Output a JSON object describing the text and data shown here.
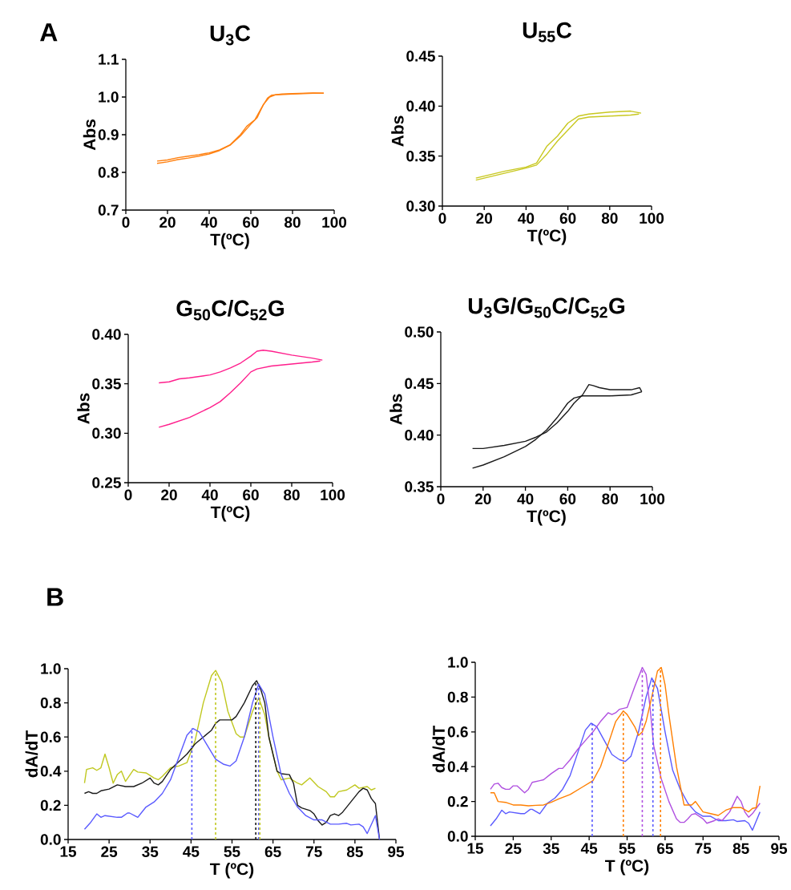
{
  "chart_data": [
    {
      "type": "line",
      "title": "U$_{3}$C",
      "xlabel": "T(ºC)",
      "ylabel": "Abs",
      "annotations": [
        "A"
      ],
      "line_style": "solid",
      "xlim": [
        0,
        100
      ],
      "ylim": [
        0.7,
        1.1
      ],
      "xticks": [
        0,
        20,
        40,
        60,
        80,
        100
      ],
      "yticks": [
        0.7,
        0.8,
        0.9,
        {
          "value": 1.0,
          "label": "1.0"
        },
        1.1
      ],
      "series": [
        {
          "color": "#ff8010",
          "x": [
            15,
            20,
            25,
            30,
            35,
            40,
            45,
            50,
            55,
            58,
            62,
            65,
            68,
            70,
            75,
            80,
            90,
            95
          ],
          "values": [
            0.83,
            0.833,
            0.839,
            0.843,
            0.847,
            0.852,
            0.86,
            0.873,
            0.9,
            0.922,
            0.94,
            0.97,
            0.997,
            1.005,
            1.008,
            1.009,
            1.011,
            1.01
          ]
        },
        {
          "color": "#ff8010",
          "x": [
            15,
            20,
            25,
            30,
            35,
            40,
            45,
            50,
            55,
            60,
            63,
            66,
            69,
            72,
            80,
            90,
            95
          ],
          "values": [
            0.824,
            0.828,
            0.834,
            0.838,
            0.843,
            0.849,
            0.858,
            0.872,
            0.897,
            0.928,
            0.945,
            0.98,
            1.0,
            1.006,
            1.008,
            1.01,
            1.01
          ]
        }
      ]
    },
    {
      "type": "line",
      "title": "U$_{55}$C",
      "xlabel": "T(ºC)",
      "ylabel": "Abs",
      "line_style": "solid",
      "xlim": [
        0,
        100
      ],
      "ylim": [
        0.3,
        0.45
      ],
      "xticks": [
        0,
        20,
        40,
        60,
        80,
        100
      ],
      "yticks": [
        {
          "value": 0.3,
          "label": "0.30"
        },
        0.35,
        {
          "value": 0.4,
          "label": "0.40"
        },
        0.45
      ],
      "series": [
        {
          "color": "#c8c820",
          "x": [
            16,
            30,
            40,
            45,
            50,
            55,
            60,
            65,
            70,
            80,
            90,
            95
          ],
          "values": [
            0.328,
            0.335,
            0.339,
            0.343,
            0.36,
            0.37,
            0.383,
            0.39,
            0.392,
            0.394,
            0.395,
            0.393
          ]
        },
        {
          "color": "#c8c820",
          "x": [
            16,
            30,
            40,
            45,
            50,
            55,
            60,
            65,
            70,
            80,
            90,
            94
          ],
          "values": [
            0.326,
            0.333,
            0.338,
            0.341,
            0.352,
            0.365,
            0.376,
            0.387,
            0.389,
            0.39,
            0.391,
            0.392
          ]
        }
      ]
    },
    {
      "type": "line",
      "title": "G$_{50}$C/C$_{52}$G",
      "xlabel": "T(ºC)",
      "ylabel": "Abs",
      "line_style": "solid",
      "xlim": [
        0,
        100
      ],
      "ylim": [
        0.25,
        0.4
      ],
      "xticks": [
        0,
        20,
        40,
        60,
        80,
        100
      ],
      "yticks": [
        0.25,
        {
          "value": 0.3,
          "label": "0.30"
        },
        0.35,
        {
          "value": 0.4,
          "label": "0.40"
        }
      ],
      "series": [
        {
          "color": "#ff1e8c",
          "x": [
            15,
            20,
            25,
            30,
            40,
            45,
            50,
            55,
            60,
            63,
            66,
            70,
            80,
            90,
            95
          ],
          "values": [
            0.351,
            0.352,
            0.355,
            0.356,
            0.359,
            0.362,
            0.366,
            0.371,
            0.378,
            0.383,
            0.384,
            0.383,
            0.379,
            0.376,
            0.374
          ]
        },
        {
          "color": "#ff1e8c",
          "x": [
            15,
            20,
            30,
            40,
            45,
            50,
            55,
            60,
            63,
            70,
            80,
            90,
            94
          ],
          "values": [
            0.306,
            0.309,
            0.316,
            0.326,
            0.332,
            0.341,
            0.351,
            0.362,
            0.365,
            0.368,
            0.37,
            0.372,
            0.373
          ]
        }
      ]
    },
    {
      "type": "line",
      "title": "U$_{3}$G/G$_{50}$C/C$_{52}$G",
      "xlabel": "T(ºC)",
      "ylabel": "Abs",
      "line_style": "solid",
      "xlim": [
        0,
        100
      ],
      "ylim": [
        0.35,
        0.5
      ],
      "xticks": [
        0,
        20,
        40,
        60,
        80,
        100
      ],
      "yticks": [
        0.35,
        {
          "value": 0.4,
          "label": "0.40"
        },
        0.45,
        {
          "value": 0.5,
          "label": "0.50"
        }
      ],
      "series": [
        {
          "color": "#1a1a1a",
          "x": [
            15,
            20,
            30,
            40,
            45,
            50,
            55,
            60,
            63,
            67,
            70,
            72,
            75,
            80,
            90,
            94,
            95
          ],
          "values": [
            0.387,
            0.387,
            0.39,
            0.394,
            0.398,
            0.403,
            0.412,
            0.423,
            0.431,
            0.439,
            0.449,
            0.448,
            0.446,
            0.444,
            0.444,
            0.446,
            0.442
          ]
        },
        {
          "color": "#1a1a1a",
          "x": [
            15,
            20,
            30,
            40,
            45,
            50,
            55,
            60,
            63,
            67,
            70,
            80,
            90,
            95
          ],
          "values": [
            0.368,
            0.371,
            0.379,
            0.389,
            0.396,
            0.405,
            0.417,
            0.431,
            0.436,
            0.438,
            0.438,
            0.438,
            0.439,
            0.442
          ]
        }
      ]
    },
    {
      "type": "line",
      "xlabel": "T (ºC)",
      "ylabel": "dA/dT",
      "annotations": [
        "B"
      ],
      "line_style": "solid",
      "xlim": [
        15,
        95
      ],
      "ylim": [
        0,
        1
      ],
      "xticks": [
        15,
        25,
        35,
        45,
        55,
        65,
        75,
        85,
        95
      ],
      "yticks": [
        {
          "value": 0,
          "label": "0.0"
        },
        0.2,
        0.4,
        0.6,
        0.8,
        {
          "value": 1,
          "label": "1.0"
        }
      ],
      "series": [
        {
          "color": "#c0c820",
          "x": [
            19,
            19.5,
            21,
            22,
            23,
            24,
            25,
            26,
            27,
            28,
            29,
            31,
            32,
            34,
            36,
            37,
            38,
            40,
            42,
            44,
            46,
            48,
            50,
            51,
            52.5,
            54,
            56,
            57,
            58,
            60,
            61.5,
            63,
            64,
            66,
            67,
            69,
            71,
            72,
            74,
            76,
            78,
            79,
            80,
            81,
            83,
            85,
            86,
            88,
            89,
            90
          ],
          "values": [
            0.33,
            0.41,
            0.42,
            0.405,
            0.42,
            0.5,
            0.42,
            0.33,
            0.38,
            0.4,
            0.34,
            0.41,
            0.395,
            0.39,
            0.36,
            0.35,
            0.37,
            0.42,
            0.43,
            0.45,
            0.58,
            0.8,
            0.96,
            0.99,
            0.92,
            0.75,
            0.62,
            0.6,
            0.6,
            0.75,
            0.83,
            0.73,
            0.6,
            0.4,
            0.35,
            0.36,
            0.33,
            0.32,
            0.36,
            0.31,
            0.28,
            0.25,
            0.25,
            0.28,
            0.29,
            0.32,
            0.3,
            0.31,
            0.29,
            0.3
          ]
        },
        {
          "color": "#1a1a1a",
          "x": [
            19,
            20,
            21,
            22,
            23,
            25,
            27,
            29,
            31,
            33,
            35,
            36,
            37,
            38,
            40,
            42,
            44,
            46,
            48,
            50,
            51,
            52,
            55,
            56,
            58,
            60,
            61,
            62,
            63,
            64,
            66,
            67,
            69,
            70,
            71,
            72,
            74,
            75,
            76,
            77,
            78,
            79,
            80,
            81,
            82,
            84,
            86,
            87,
            88,
            89,
            90,
            91
          ],
          "values": [
            0.27,
            0.28,
            0.27,
            0.27,
            0.285,
            0.295,
            0.32,
            0.31,
            0.31,
            0.33,
            0.36,
            0.33,
            0.32,
            0.34,
            0.41,
            0.455,
            0.5,
            0.56,
            0.6,
            0.64,
            0.68,
            0.7,
            0.7,
            0.72,
            0.8,
            0.9,
            0.93,
            0.88,
            0.8,
            0.6,
            0.4,
            0.385,
            0.38,
            0.33,
            0.2,
            0.185,
            0.17,
            0.15,
            0.11,
            0.085,
            0.1,
            0.14,
            0.15,
            0.14,
            0.16,
            0.22,
            0.28,
            0.3,
            0.29,
            0.24,
            0.21,
            0
          ]
        },
        {
          "color": "#5a5aff",
          "x": [
            19,
            20.5,
            22,
            23,
            24,
            27,
            28,
            29.5,
            30,
            32,
            34,
            36,
            38,
            40,
            42,
            44,
            45.5,
            47,
            49,
            51,
            53,
            54.5,
            56,
            58,
            60,
            61.5,
            63,
            65,
            67,
            69,
            71,
            73,
            75,
            77,
            79,
            81,
            83,
            84,
            86,
            87,
            88,
            90,
            91
          ],
          "values": [
            0.06,
            0.1,
            0.15,
            0.13,
            0.14,
            0.13,
            0.13,
            0.155,
            0.155,
            0.13,
            0.19,
            0.22,
            0.27,
            0.35,
            0.48,
            0.61,
            0.65,
            0.63,
            0.55,
            0.47,
            0.44,
            0.43,
            0.46,
            0.6,
            0.8,
            0.91,
            0.85,
            0.6,
            0.38,
            0.27,
            0.19,
            0.14,
            0.115,
            0.115,
            0.09,
            0.09,
            0.095,
            0.085,
            0.09,
            0.075,
            0.035,
            0.14,
            0
          ]
        },
        {
          "type": "line",
          "line_style": "dashed",
          "color": "#5a5aff",
          "x": [
            45.2,
            45.2
          ],
          "values": [
            0,
            0.65
          ]
        },
        {
          "type": "line",
          "line_style": "dashed",
          "color": "#c0c820",
          "x": [
            51,
            51
          ],
          "values": [
            0,
            0.98
          ]
        },
        {
          "type": "line",
          "line_style": "dashed",
          "color": "#1a1a1a",
          "x": [
            60.8,
            60.8
          ],
          "values": [
            0,
            0.93
          ]
        },
        {
          "type": "line",
          "line_style": "dashed",
          "color": "#5a5aff",
          "x": [
            61.5,
            61.5
          ],
          "values": [
            0,
            0.91
          ]
        },
        {
          "type": "line",
          "line_style": "dashed",
          "color": "#c0c820",
          "x": [
            61.8,
            61.8
          ],
          "values": [
            0,
            0.83
          ]
        }
      ]
    },
    {
      "type": "line",
      "xlabel": "T (ºC)",
      "ylabel": "dA/dT",
      "line_style": "solid",
      "xlim": [
        15,
        95
      ],
      "ylim": [
        0,
        1
      ],
      "xticks": [
        15,
        25,
        35,
        45,
        55,
        65,
        75,
        85,
        95
      ],
      "yticks": [
        {
          "value": 0,
          "label": "0.0"
        },
        0.2,
        0.4,
        0.6,
        0.8,
        {
          "value": 1,
          "label": "1.0"
        }
      ],
      "series": [
        {
          "color": "#5a5aff",
          "x": [
            19,
            20.5,
            22,
            23,
            24,
            27,
            28,
            29.5,
            30,
            32,
            34,
            36,
            38,
            40,
            42,
            44,
            45.5,
            47,
            49,
            51,
            53,
            54.5,
            56,
            58,
            60,
            61.5,
            63,
            65,
            67,
            69,
            71,
            73,
            75,
            77,
            79,
            81,
            83,
            84,
            86,
            87,
            88,
            90
          ],
          "values": [
            0.06,
            0.1,
            0.15,
            0.13,
            0.14,
            0.13,
            0.13,
            0.155,
            0.155,
            0.13,
            0.19,
            0.22,
            0.27,
            0.35,
            0.48,
            0.61,
            0.65,
            0.63,
            0.55,
            0.47,
            0.44,
            0.43,
            0.46,
            0.6,
            0.8,
            0.91,
            0.85,
            0.6,
            0.38,
            0.27,
            0.19,
            0.14,
            0.115,
            0.115,
            0.09,
            0.09,
            0.095,
            0.085,
            0.09,
            0.075,
            0.035,
            0.14
          ]
        },
        {
          "color": "#b050e0",
          "x": [
            19,
            20,
            21,
            22,
            23,
            24,
            25,
            26,
            27,
            28,
            29,
            30,
            32,
            33,
            35,
            37,
            38,
            40,
            42,
            44,
            46,
            48,
            50,
            51,
            52,
            53,
            55,
            57,
            59,
            60,
            61,
            62,
            64,
            66,
            68,
            69,
            70,
            71,
            72,
            73,
            75,
            76,
            78,
            79,
            80,
            82,
            84,
            85,
            86,
            87,
            88,
            90
          ],
          "values": [
            0.27,
            0.3,
            0.305,
            0.28,
            0.27,
            0.27,
            0.29,
            0.29,
            0.27,
            0.25,
            0.27,
            0.31,
            0.32,
            0.325,
            0.36,
            0.39,
            0.39,
            0.44,
            0.5,
            0.55,
            0.6,
            0.66,
            0.71,
            0.7,
            0.71,
            0.73,
            0.74,
            0.86,
            0.97,
            0.93,
            0.75,
            0.52,
            0.33,
            0.2,
            0.1,
            0.08,
            0.08,
            0.1,
            0.125,
            0.13,
            0.1,
            0.075,
            0.09,
            0.1,
            0.09,
            0.14,
            0.23,
            0.2,
            0.14,
            0.11,
            0.13,
            0.19
          ]
        },
        {
          "color": "#ff7f00",
          "x": [
            19,
            20,
            21,
            23,
            25,
            27,
            29,
            31,
            33,
            35,
            37,
            40,
            43,
            46,
            48,
            50,
            52,
            54,
            55,
            57,
            58,
            59,
            60,
            62,
            63,
            64,
            65,
            66,
            68,
            70,
            72,
            73,
            75,
            77,
            79,
            81,
            83,
            85,
            87,
            88,
            89,
            90
          ],
          "values": [
            0.25,
            0.25,
            0.2,
            0.195,
            0.18,
            0.18,
            0.175,
            0.178,
            0.18,
            0.195,
            0.215,
            0.24,
            0.28,
            0.32,
            0.4,
            0.53,
            0.66,
            0.72,
            0.7,
            0.63,
            0.58,
            0.6,
            0.66,
            0.85,
            0.95,
            0.97,
            0.87,
            0.7,
            0.4,
            0.18,
            0.18,
            0.2,
            0.14,
            0.13,
            0.12,
            0.15,
            0.165,
            0.165,
            0.14,
            0.16,
            0.165,
            0.29
          ]
        },
        {
          "type": "line",
          "line_style": "dashed",
          "color": "#5a5aff",
          "x": [
            45.8,
            45.8
          ],
          "values": [
            0,
            0.65
          ]
        },
        {
          "type": "line",
          "line_style": "dashed",
          "color": "#ff7f00",
          "x": [
            54,
            54
          ],
          "values": [
            0,
            0.72
          ]
        },
        {
          "type": "line",
          "line_style": "dashed",
          "color": "#b050e0",
          "x": [
            59,
            59
          ],
          "values": [
            0,
            0.97
          ]
        },
        {
          "type": "line",
          "line_style": "dashed",
          "color": "#5a5aff",
          "x": [
            61.8,
            61.8
          ],
          "values": [
            0,
            0.91
          ]
        },
        {
          "type": "line",
          "line_style": "dashed",
          "color": "#ff7f00",
          "x": [
            63.8,
            63.8
          ],
          "values": [
            0,
            0.97
          ]
        }
      ]
    }
  ]
}
